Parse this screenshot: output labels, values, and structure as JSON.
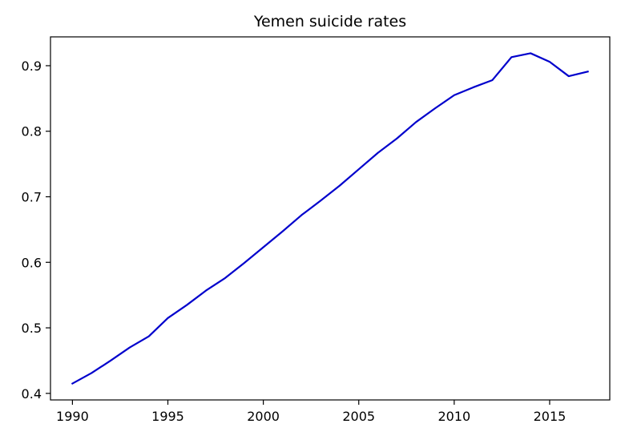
{
  "chart_data": {
    "type": "line",
    "title": "Yemen suicide rates",
    "xlabel": "",
    "ylabel": "",
    "xlim": [
      1988.9,
      1990.0
    ],
    "ylim": [
      0.39,
      0.944
    ],
    "x_ticks": [
      1990,
      1995,
      2000,
      2005,
      2010,
      2015
    ],
    "x_tick_labels": [
      "1990",
      "1995",
      "2000",
      "2005",
      "2010",
      "2015"
    ],
    "y_ticks": [
      0.4,
      0.5,
      0.6,
      0.7,
      0.8,
      0.9
    ],
    "y_tick_labels": [
      "0.4",
      "0.5",
      "0.6",
      "0.7",
      "0.8",
      "0.9"
    ],
    "grid": false,
    "legend": "none",
    "series": [
      {
        "color": "#0000cc",
        "x": [
          1990,
          1991,
          1992,
          1993,
          1994,
          1995,
          1996,
          1997,
          1998,
          1999,
          2000,
          2001,
          2002,
          2003,
          2004,
          2005,
          2006,
          2007,
          2008,
          2009,
          2010,
          2011,
          2012,
          2013,
          2014,
          2015,
          2016,
          2017
        ],
        "y": [
          0.415,
          0.431,
          0.45,
          0.47,
          0.487,
          0.515,
          0.535,
          0.557,
          0.576,
          0.599,
          0.623,
          0.647,
          0.672,
          0.694,
          0.717,
          0.742,
          0.767,
          0.789,
          0.814,
          0.835,
          0.855,
          0.867,
          0.878,
          0.913,
          0.919,
          0.906,
          0.884,
          0.891
        ]
      }
    ]
  }
}
